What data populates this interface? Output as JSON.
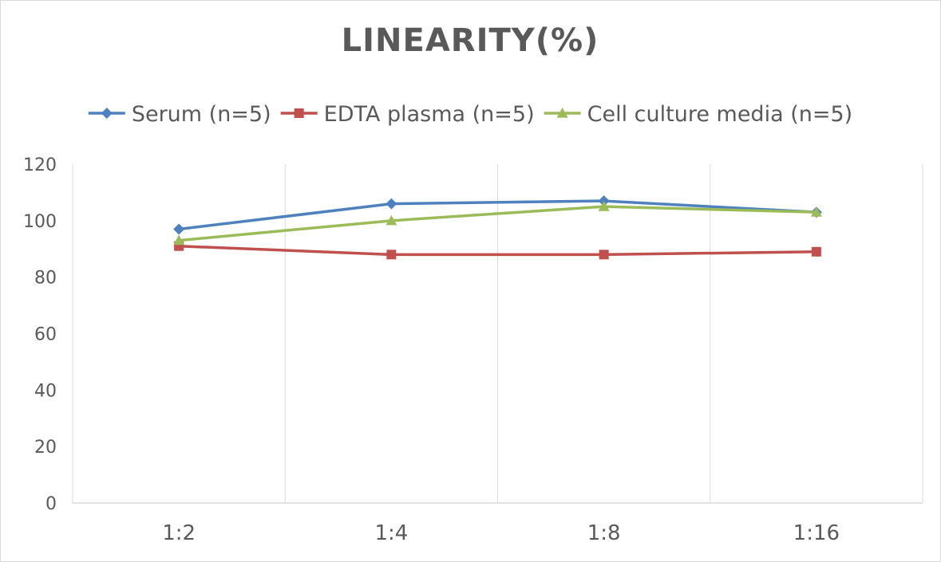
{
  "chart_data": {
    "type": "line",
    "title": "LINEARITY(%)",
    "categories": [
      "1:2",
      "1:4",
      "1:8",
      "1:16"
    ],
    "ylim": [
      0,
      120
    ],
    "yticks": [
      0,
      20,
      40,
      60,
      80,
      100,
      120
    ],
    "grid": "vertical",
    "legend_position": "top",
    "series": [
      {
        "name": "Serum (n=5)",
        "values": [
          97,
          106,
          107,
          103
        ],
        "color": "#4e81bd",
        "marker": "diamond"
      },
      {
        "name": "EDTA plasma (n=5)",
        "values": [
          91,
          88,
          88,
          89
        ],
        "color": "#c0504d",
        "marker": "square"
      },
      {
        "name": "Cell culture media (n=5)",
        "values": [
          93,
          100,
          105,
          103
        ],
        "color": "#9bbb59",
        "marker": "triangle"
      }
    ]
  }
}
